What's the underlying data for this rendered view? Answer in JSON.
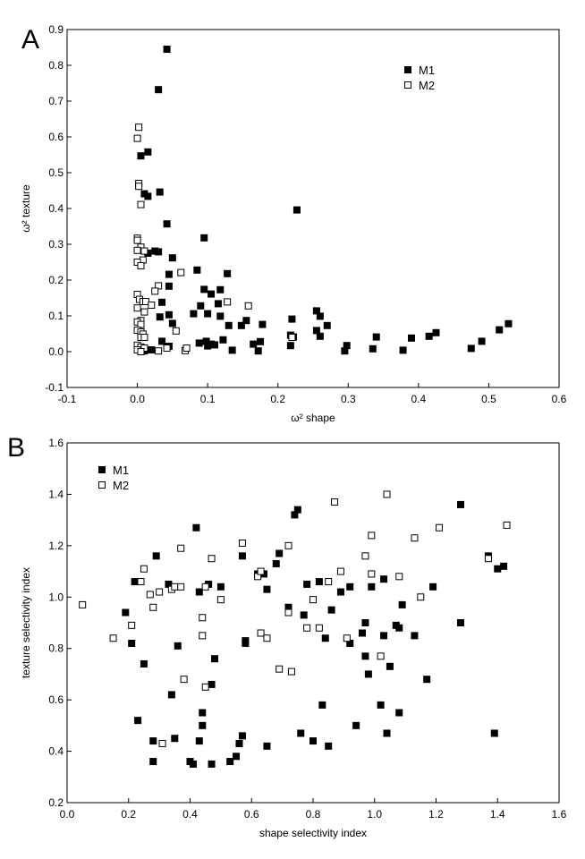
{
  "chart_data": [
    {
      "type": "scatter",
      "panel_label": "A",
      "xlabel": "ω² shape",
      "ylabel": "ω² texture",
      "xlim": [
        -0.1,
        0.6
      ],
      "ylim": [
        -0.1,
        0.9
      ],
      "xticks": [
        "-0.1",
        "0.0",
        "0.1",
        "0.2",
        "0.3",
        "0.4",
        "0.5",
        "0.6"
      ],
      "yticks": [
        "-0.1",
        "0.0",
        "0.1",
        "0.2",
        "0.3",
        "0.4",
        "0.5",
        "0.6",
        "0.7",
        "0.8",
        "0.9"
      ],
      "grid": false,
      "legend_position": "top-right",
      "series": [
        {
          "name": "M1",
          "marker": "filled-square",
          "color": "#000000",
          "points": [
            [
              0.042,
              0.845
            ],
            [
              0.03,
              0.732
            ],
            [
              0.015,
              0.558
            ],
            [
              0.005,
              0.547
            ],
            [
              0.032,
              0.446
            ],
            [
              0.01,
              0.441
            ],
            [
              0.015,
              0.434
            ],
            [
              0.042,
              0.357
            ],
            [
              0.227,
              0.396
            ],
            [
              0.095,
              0.318
            ],
            [
              0.025,
              0.281
            ],
            [
              0.03,
              0.279
            ],
            [
              0.015,
              0.275
            ],
            [
              0.05,
              0.262
            ],
            [
              0.085,
              0.228
            ],
            [
              0.045,
              0.216
            ],
            [
              0.128,
              0.218
            ],
            [
              0.045,
              0.183
            ],
            [
              0.095,
              0.174
            ],
            [
              0.118,
              0.173
            ],
            [
              0.105,
              0.161
            ],
            [
              0.035,
              0.138
            ],
            [
              0.09,
              0.128
            ],
            [
              0.115,
              0.134
            ],
            [
              0.032,
              0.097
            ],
            [
              0.045,
              0.103
            ],
            [
              0.08,
              0.106
            ],
            [
              0.1,
              0.106
            ],
            [
              0.118,
              0.099
            ],
            [
              0.155,
              0.087
            ],
            [
              0.13,
              0.073
            ],
            [
              0.148,
              0.073
            ],
            [
              0.05,
              0.079
            ],
            [
              0.178,
              0.076
            ],
            [
              0.22,
              0.091
            ],
            [
              0.255,
              0.114
            ],
            [
              0.26,
              0.099
            ],
            [
              0.27,
              0.073
            ],
            [
              0.255,
              0.059
            ],
            [
              0.26,
              0.043
            ],
            [
              0.218,
              0.046
            ],
            [
              0.222,
              0.041
            ],
            [
              0.098,
              0.029
            ],
            [
              0.088,
              0.024
            ],
            [
              0.035,
              0.029
            ],
            [
              0.045,
              0.015
            ],
            [
              0.105,
              0.021
            ],
            [
              0.11,
              0.019
            ],
            [
              0.122,
              0.033
            ],
            [
              0.1,
              0.016
            ],
            [
              0.135,
              0.004
            ],
            [
              0.165,
              0.021
            ],
            [
              0.175,
              0.028
            ],
            [
              0.172,
              0.002
            ],
            [
              0.218,
              0.017
            ],
            [
              0.295,
              0.002
            ],
            [
              0.298,
              0.017
            ],
            [
              0.335,
              0.008
            ],
            [
              0.34,
              0.041
            ],
            [
              0.378,
              0.004
            ],
            [
              0.39,
              0.038
            ],
            [
              0.415,
              0.043
            ],
            [
              0.425,
              0.053
            ],
            [
              0.475,
              0.009
            ],
            [
              0.49,
              0.029
            ],
            [
              0.515,
              0.061
            ],
            [
              0.528,
              0.078
            ],
            [
              0.02,
              0.005
            ],
            [
              0.01,
              0.002
            ]
          ]
        },
        {
          "name": "M2",
          "marker": "open-square",
          "color": "#000000",
          "points": [
            [
              0.002,
              0.627
            ],
            [
              0.0,
              0.596
            ],
            [
              0.002,
              0.47
            ],
            [
              0.002,
              0.462
            ],
            [
              0.005,
              0.411
            ],
            [
              0.0,
              0.317
            ],
            [
              0.0,
              0.311
            ],
            [
              0.005,
              0.292
            ],
            [
              0.01,
              0.281
            ],
            [
              0.0,
              0.283
            ],
            [
              0.008,
              0.256
            ],
            [
              0.0,
              0.25
            ],
            [
              0.005,
              0.24
            ],
            [
              0.062,
              0.221
            ],
            [
              0.03,
              0.184
            ],
            [
              0.025,
              0.169
            ],
            [
              0.0,
              0.16
            ],
            [
              0.003,
              0.146
            ],
            [
              0.008,
              0.14
            ],
            [
              0.012,
              0.14
            ],
            [
              0.02,
              0.13
            ],
            [
              0.128,
              0.139
            ],
            [
              0.158,
              0.128
            ],
            [
              0.0,
              0.122
            ],
            [
              0.01,
              0.111
            ],
            [
              0.005,
              0.087
            ],
            [
              0.0,
              0.083
            ],
            [
              0.005,
              0.076
            ],
            [
              0.0,
              0.06
            ],
            [
              0.005,
              0.055
            ],
            [
              0.008,
              0.049
            ],
            [
              0.055,
              0.058
            ],
            [
              0.005,
              0.04
            ],
            [
              0.01,
              0.04
            ],
            [
              0.0,
              0.018
            ],
            [
              0.005,
              0.013
            ],
            [
              0.01,
              0.01
            ],
            [
              0.0,
              0.005
            ],
            [
              0.03,
              0.002
            ],
            [
              0.068,
              0.003
            ],
            [
              0.07,
              0.01
            ],
            [
              0.042,
              0.01
            ],
            [
              0.22,
              0.04
            ],
            [
              0.005,
              0.0
            ]
          ]
        }
      ]
    },
    {
      "type": "scatter",
      "panel_label": "B",
      "xlabel": "shape selectivity index",
      "ylabel": "texture selectivity index",
      "xlim": [
        0.0,
        1.6
      ],
      "ylim": [
        0.2,
        1.6
      ],
      "xticks": [
        "0.0",
        "0.2",
        "0.4",
        "0.6",
        "0.8",
        "1.0",
        "1.2",
        "1.4",
        "1.6"
      ],
      "yticks": [
        "0.2",
        "0.4",
        "0.6",
        "0.8",
        "1.0",
        "1.2",
        "1.4",
        "1.6"
      ],
      "grid": false,
      "legend_position": "top-left",
      "series": [
        {
          "name": "M1",
          "marker": "filled-square",
          "color": "#000000",
          "points": [
            [
              0.19,
              0.94
            ],
            [
              0.21,
              0.82
            ],
            [
              0.22,
              1.06
            ],
            [
              0.23,
              0.52
            ],
            [
              0.25,
              0.74
            ],
            [
              0.28,
              0.36
            ],
            [
              0.28,
              0.44
            ],
            [
              0.29,
              1.16
            ],
            [
              0.33,
              1.05
            ],
            [
              0.34,
              0.62
            ],
            [
              0.35,
              0.45
            ],
            [
              0.36,
              0.81
            ],
            [
              0.4,
              0.36
            ],
            [
              0.41,
              0.35
            ],
            [
              0.42,
              1.27
            ],
            [
              0.43,
              0.44
            ],
            [
              0.43,
              1.02
            ],
            [
              0.44,
              0.5
            ],
            [
              0.44,
              0.55
            ],
            [
              0.46,
              1.05
            ],
            [
              0.47,
              0.35
            ],
            [
              0.47,
              0.66
            ],
            [
              0.48,
              0.76
            ],
            [
              0.5,
              1.04
            ],
            [
              0.53,
              0.36
            ],
            [
              0.55,
              0.38
            ],
            [
              0.56,
              0.43
            ],
            [
              0.57,
              0.46
            ],
            [
              0.57,
              1.16
            ],
            [
              0.58,
              0.83
            ],
            [
              0.58,
              0.82
            ],
            [
              0.62,
              1.09
            ],
            [
              0.64,
              1.09
            ],
            [
              0.65,
              0.42
            ],
            [
              0.65,
              1.03
            ],
            [
              0.68,
              1.13
            ],
            [
              0.69,
              1.17
            ],
            [
              0.72,
              0.96
            ],
            [
              0.74,
              1.32
            ],
            [
              0.75,
              1.34
            ],
            [
              0.76,
              0.47
            ],
            [
              0.77,
              0.93
            ],
            [
              0.78,
              1.05
            ],
            [
              0.8,
              0.44
            ],
            [
              0.82,
              1.06
            ],
            [
              0.83,
              0.58
            ],
            [
              0.84,
              0.84
            ],
            [
              0.85,
              0.42
            ],
            [
              0.86,
              0.95
            ],
            [
              0.89,
              1.02
            ],
            [
              0.92,
              0.82
            ],
            [
              0.92,
              1.04
            ],
            [
              0.94,
              0.5
            ],
            [
              0.96,
              0.86
            ],
            [
              0.97,
              0.9
            ],
            [
              0.97,
              0.77
            ],
            [
              0.98,
              0.7
            ],
            [
              0.99,
              1.04
            ],
            [
              1.02,
              0.58
            ],
            [
              1.03,
              1.07
            ],
            [
              1.03,
              0.85
            ],
            [
              1.04,
              0.47
            ],
            [
              1.05,
              0.73
            ],
            [
              1.07,
              0.89
            ],
            [
              1.08,
              0.88
            ],
            [
              1.08,
              0.55
            ],
            [
              1.09,
              0.97
            ],
            [
              1.13,
              0.85
            ],
            [
              1.17,
              0.68
            ],
            [
              1.19,
              1.04
            ],
            [
              1.28,
              0.9
            ],
            [
              1.28,
              1.36
            ],
            [
              1.37,
              1.16
            ],
            [
              1.39,
              0.47
            ],
            [
              1.4,
              1.11
            ],
            [
              1.42,
              1.12
            ]
          ]
        },
        {
          "name": "M2",
          "marker": "open-square",
          "color": "#000000",
          "points": [
            [
              0.05,
              0.97
            ],
            [
              0.15,
              0.84
            ],
            [
              0.21,
              0.89
            ],
            [
              0.24,
              1.06
            ],
            [
              0.25,
              1.11
            ],
            [
              0.27,
              1.01
            ],
            [
              0.28,
              0.96
            ],
            [
              0.3,
              1.02
            ],
            [
              0.31,
              0.43
            ],
            [
              0.34,
              1.03
            ],
            [
              0.35,
              1.04
            ],
            [
              0.37,
              1.04
            ],
            [
              0.37,
              1.19
            ],
            [
              0.38,
              0.68
            ],
            [
              0.44,
              0.92
            ],
            [
              0.44,
              0.85
            ],
            [
              0.45,
              0.65
            ],
            [
              0.45,
              1.04
            ],
            [
              0.47,
              1.15
            ],
            [
              0.5,
              0.99
            ],
            [
              0.57,
              1.21
            ],
            [
              0.62,
              1.08
            ],
            [
              0.63,
              1.1
            ],
            [
              0.63,
              0.86
            ],
            [
              0.65,
              0.84
            ],
            [
              0.69,
              0.72
            ],
            [
              0.72,
              1.2
            ],
            [
              0.72,
              0.94
            ],
            [
              0.73,
              0.71
            ],
            [
              0.78,
              0.88
            ],
            [
              0.8,
              0.99
            ],
            [
              0.82,
              0.88
            ],
            [
              0.85,
              1.06
            ],
            [
              0.87,
              1.37
            ],
            [
              0.89,
              1.1
            ],
            [
              0.91,
              0.84
            ],
            [
              0.97,
              1.16
            ],
            [
              0.99,
              1.24
            ],
            [
              0.99,
              1.09
            ],
            [
              1.02,
              0.77
            ],
            [
              1.04,
              1.4
            ],
            [
              1.08,
              1.08
            ],
            [
              1.13,
              1.23
            ],
            [
              1.15,
              1.0
            ],
            [
              1.21,
              1.27
            ],
            [
              1.37,
              1.15
            ],
            [
              1.43,
              1.28
            ]
          ]
        }
      ]
    }
  ]
}
